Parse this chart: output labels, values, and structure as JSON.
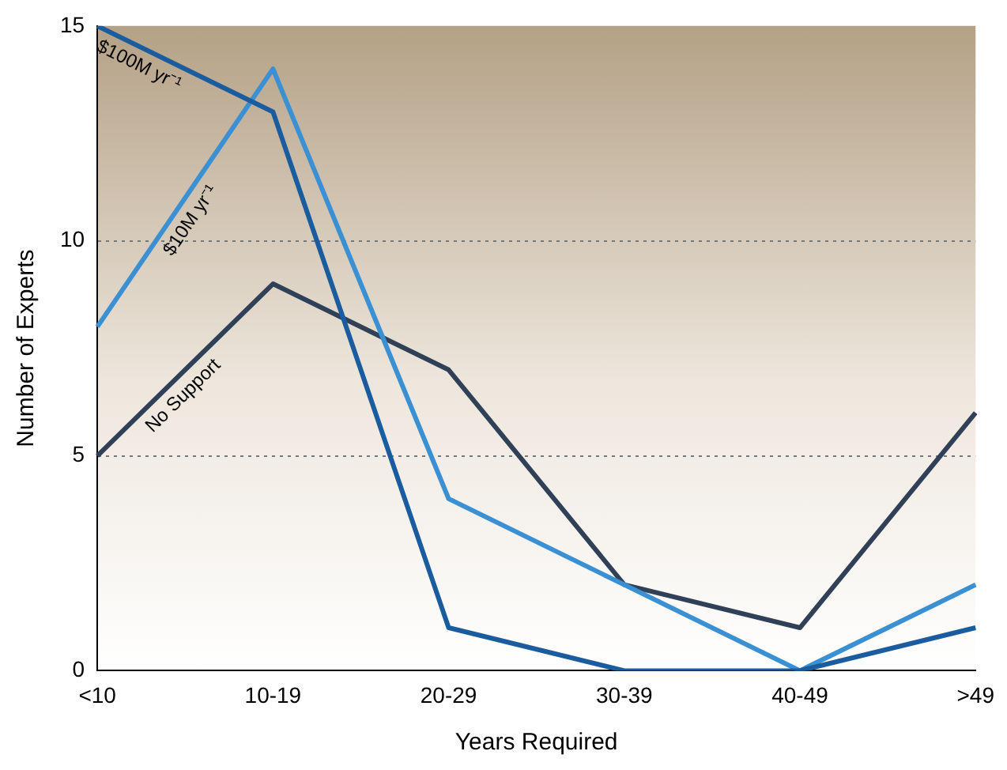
{
  "chart_data": {
    "type": "line",
    "xlabel": "Years Required",
    "ylabel": "Number of Experts",
    "categories": [
      "<10",
      "10-19",
      "20-29",
      "30-39",
      "40-49",
      ">49"
    ],
    "series": [
      {
        "name": "$100M yr⁻¹",
        "color": "#1b5c9e",
        "values": [
          15,
          13,
          1,
          0,
          0,
          1
        ]
      },
      {
        "name": "$10M yr⁻¹",
        "color": "#3a90d2",
        "values": [
          8,
          14,
          4,
          2,
          0,
          2
        ]
      },
      {
        "name": "No Support",
        "color": "#2f4057",
        "values": [
          5,
          9,
          7,
          2,
          1,
          6
        ]
      }
    ],
    "ylim": [
      0,
      15
    ],
    "yticks": [
      0,
      5,
      10,
      15
    ],
    "grid": "y",
    "legend": false,
    "marker": "none",
    "line_style": "solid"
  }
}
